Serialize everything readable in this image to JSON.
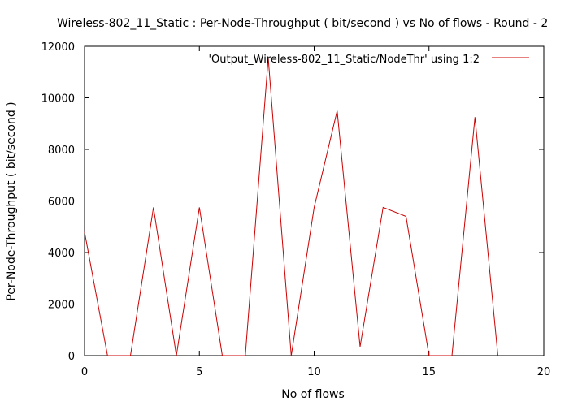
{
  "chart_data": {
    "type": "line",
    "title": "Wireless-802_11_Static : Per-Node-Throughput ( bit/second ) vs No of flows - Round - 2",
    "xlabel": "No of flows",
    "ylabel": "Per-Node-Throughput ( bit/second )",
    "xlim": [
      0,
      20
    ],
    "ylim": [
      0,
      12000
    ],
    "xticks": [
      0,
      5,
      10,
      15,
      20
    ],
    "yticks": [
      0,
      2000,
      4000,
      6000,
      8000,
      10000,
      12000
    ],
    "grid": false,
    "legend_position": "top-right",
    "series": [
      {
        "name": "'Output_Wireless-802_11_Static/NodeThr' using 1:2",
        "color": "#cc0000",
        "x": [
          0,
          1,
          2,
          3,
          4,
          5,
          6,
          7,
          8,
          9,
          10,
          11,
          12,
          13,
          14,
          15,
          16,
          17,
          18
        ],
        "values": [
          4800,
          0,
          0,
          5750,
          0,
          5750,
          0,
          0,
          11550,
          0,
          5750,
          9500,
          350,
          5750,
          5400,
          0,
          0,
          9250,
          0
        ]
      }
    ]
  }
}
